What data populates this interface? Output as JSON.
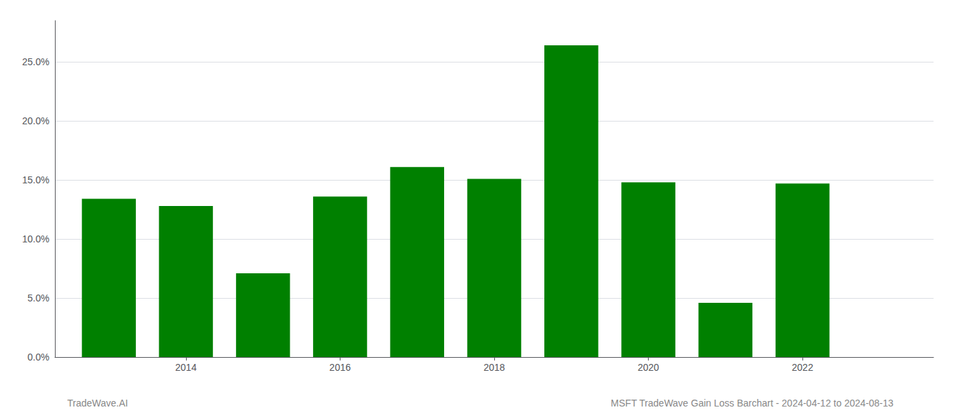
{
  "chart_data": {
    "type": "bar",
    "x": [
      2013,
      2014,
      2015,
      2016,
      2017,
      2018,
      2019,
      2020,
      2021,
      2022
    ],
    "values": [
      0.134,
      0.128,
      0.071,
      0.136,
      0.161,
      0.151,
      0.264,
      0.148,
      0.046,
      0.147
    ],
    "color": "#008000",
    "xlim": [
      2012.3,
      2023.7
    ],
    "xticks": [
      2014,
      2016,
      2018,
      2020,
      2022
    ],
    "ylim": [
      0,
      0.285
    ],
    "yticks": [
      {
        "value": 0.0,
        "label": "0.0%"
      },
      {
        "value": 0.05,
        "label": "5.0%"
      },
      {
        "value": 0.1,
        "label": "10.0%"
      },
      {
        "value": 0.15,
        "label": "15.0%"
      },
      {
        "value": 0.2,
        "label": "20.0%"
      },
      {
        "value": 0.25,
        "label": "25.0%"
      }
    ],
    "grid": true,
    "annotations": [
      "TradeWave.AI",
      "MSFT TradeWave Gain Loss Barchart - 2024-04-12 to 2024-08-13"
    ]
  }
}
